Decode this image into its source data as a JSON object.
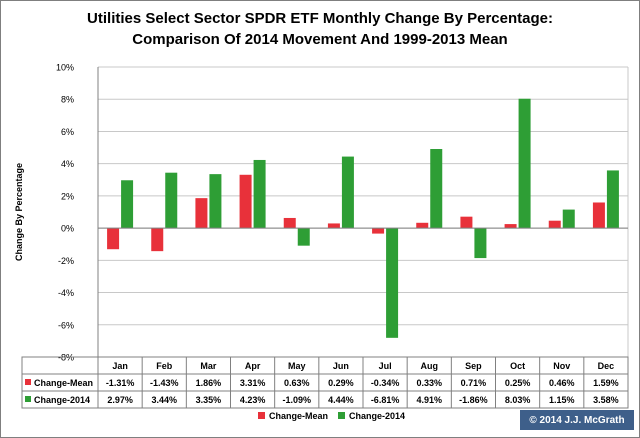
{
  "chart_data": {
    "type": "bar",
    "title_line1": "Utilities Select Sector SPDR ETF Monthly Change By Percentage:",
    "title_line2": "Comparison Of 2014 Movement And 1999-2013 Mean",
    "ylabel": "Change By Percentage",
    "xlabel": "",
    "ylim": [
      -8,
      10
    ],
    "yticks": [
      -8,
      -6,
      -4,
      -2,
      0,
      2,
      4,
      6,
      8,
      10
    ],
    "ytick_labels": [
      "-8%",
      "-6%",
      "-4%",
      "-2%",
      "0%",
      "2%",
      "4%",
      "6%",
      "8%",
      "10%"
    ],
    "grid": true,
    "legend_position": "bottom",
    "categories": [
      "Jan",
      "Feb",
      "Mar",
      "Apr",
      "May",
      "Jun",
      "Jul",
      "Aug",
      "Sep",
      "Oct",
      "Nov",
      "Dec"
    ],
    "series": [
      {
        "name": "Change-Mean",
        "color": "#e8313a",
        "values": [
          -1.31,
          -1.43,
          1.86,
          3.31,
          0.63,
          0.29,
          -0.34,
          0.33,
          0.71,
          0.25,
          0.46,
          1.59
        ],
        "labels": [
          "-1.31%",
          "-1.43%",
          "1.86%",
          "3.31%",
          "0.63%",
          "0.29%",
          "-0.34%",
          "0.33%",
          "0.71%",
          "0.25%",
          "0.46%",
          "1.59%"
        ]
      },
      {
        "name": "Change-2014",
        "color": "#2e9e35",
        "values": [
          2.97,
          3.44,
          3.35,
          4.23,
          -1.09,
          4.44,
          -6.81,
          4.91,
          -1.86,
          8.03,
          1.15,
          3.58
        ],
        "labels": [
          "2.97%",
          "3.44%",
          "3.35%",
          "4.23%",
          "-1.09%",
          "4.44%",
          "-6.81%",
          "4.91%",
          "-1.86%",
          "8.03%",
          "1.15%",
          "3.58%"
        ]
      }
    ]
  },
  "copyright": "© 2014 J.J. McGrath"
}
